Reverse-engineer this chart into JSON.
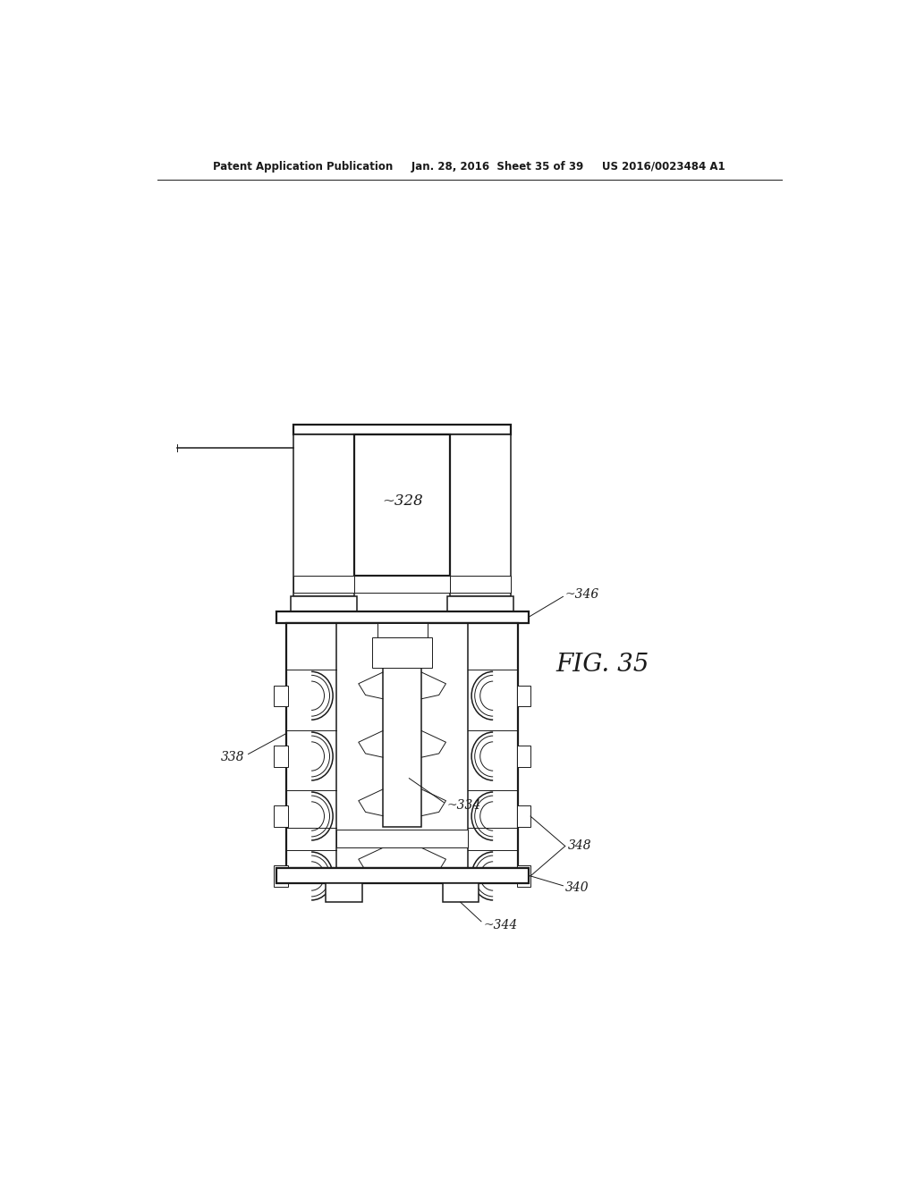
{
  "bg_color": "#ffffff",
  "line_color": "#1a1a1a",
  "header": "Patent Application Publication     Jan. 28, 2016  Sheet 35 of 39     US 2016/0023484 A1",
  "fig_label": "FIG. 35",
  "lw_thin": 0.7,
  "lw_med": 1.1,
  "lw_thick": 1.6
}
